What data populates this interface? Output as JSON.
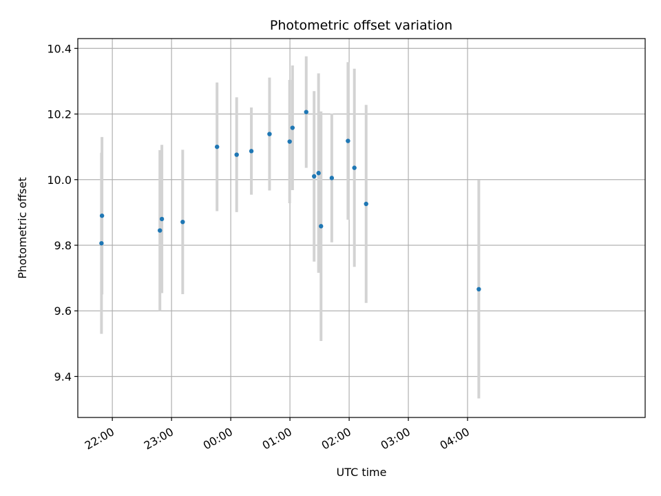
{
  "chart_data": {
    "type": "scatter",
    "title": "Photometric offset variation",
    "xlabel": "UTC time",
    "ylabel": "Photometric offset",
    "x_unit": "minutes",
    "xlim": [
      -155,
      420
    ],
    "ylim": [
      9.275,
      10.43
    ],
    "grid": true,
    "x_ticks": [
      {
        "value": -120,
        "label": "22:00"
      },
      {
        "value": -60,
        "label": "23:00"
      },
      {
        "value": 0,
        "label": "00:00"
      },
      {
        "value": 60,
        "label": "01:00"
      },
      {
        "value": 120,
        "label": "02:00"
      },
      {
        "value": 180,
        "label": "03:00"
      },
      {
        "value": 240,
        "label": "04:00"
      }
    ],
    "y_ticks": [
      {
        "value": 9.4,
        "label": "9.4"
      },
      {
        "value": 9.6,
        "label": "9.6"
      },
      {
        "value": 9.8,
        "label": "9.8"
      },
      {
        "value": 10.0,
        "label": "10.0"
      },
      {
        "value": 10.2,
        "label": "10.2"
      },
      {
        "value": 10.4,
        "label": "10.4"
      }
    ],
    "colors": {
      "point": "#1f77b4",
      "errorbar": "#d3d3d3",
      "grid": "#b0b0b0"
    },
    "points": [
      {
        "x": -131.0,
        "y": 9.806,
        "err": 0.276
      },
      {
        "x": -130.5,
        "y": 9.89,
        "err": 0.24
      },
      {
        "x": -71.8,
        "y": 9.845,
        "err": 0.245
      },
      {
        "x": -69.8,
        "y": 9.88,
        "err": 0.226
      },
      {
        "x": -48.7,
        "y": 9.871,
        "err": 0.22
      },
      {
        "x": -13.9,
        "y": 10.1,
        "err": 0.196
      },
      {
        "x": 6.0,
        "y": 10.076,
        "err": 0.175
      },
      {
        "x": 20.9,
        "y": 10.087,
        "err": 0.133
      },
      {
        "x": 39.3,
        "y": 10.139,
        "err": 0.172
      },
      {
        "x": 59.7,
        "y": 10.116,
        "err": 0.188
      },
      {
        "x": 62.6,
        "y": 10.158,
        "err": 0.19
      },
      {
        "x": 76.5,
        "y": 10.206,
        "err": 0.17
      },
      {
        "x": 84.5,
        "y": 10.01,
        "err": 0.26
      },
      {
        "x": 89.0,
        "y": 10.02,
        "err": 0.304
      },
      {
        "x": 91.5,
        "y": 9.858,
        "err": 0.35
      },
      {
        "x": 102.4,
        "y": 10.005,
        "err": 0.196
      },
      {
        "x": 118.8,
        "y": 10.118,
        "err": 0.24
      },
      {
        "x": 125.3,
        "y": 10.036,
        "err": 0.302
      },
      {
        "x": 137.2,
        "y": 9.926,
        "err": 0.302
      },
      {
        "x": 251.4,
        "y": 9.666,
        "err": 0.333
      }
    ]
  }
}
